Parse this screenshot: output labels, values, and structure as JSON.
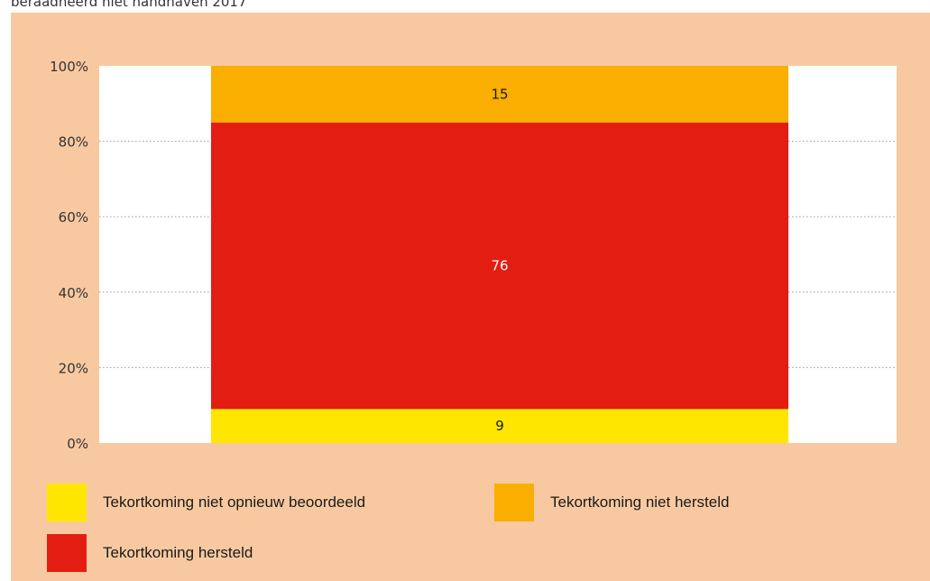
{
  "caption": "beraadheerd niet handhaven 2017",
  "colors": {
    "background": "#f8c9a0",
    "plot_bg": "#ffffff",
    "grid": "#9a9a9a",
    "yellow": "#ffe600",
    "red": "#e31d12",
    "orange": "#f9ae00"
  },
  "chart_data": {
    "type": "bar",
    "stacked": true,
    "title": "",
    "xlabel": "",
    "ylabel": "",
    "ylim": [
      0,
      100
    ],
    "y_ticks": [
      "0%",
      "20%",
      "40%",
      "60%",
      "80%",
      "100%"
    ],
    "y_tick_values": [
      0,
      20,
      40,
      60,
      80,
      100
    ],
    "grid": true,
    "categories": [
      ""
    ],
    "series": [
      {
        "name": "Tekortkoming niet opnieuw beoordeeld",
        "values": [
          9
        ],
        "label": "9",
        "color": "#ffe600",
        "label_color": "#1a1a1a"
      },
      {
        "name": "Tekortkoming hersteld",
        "values": [
          76
        ],
        "label": "76",
        "color": "#e31d12",
        "label_color": "#ffffff"
      },
      {
        "name": "Tekortkoming niet hersteld",
        "values": [
          15
        ],
        "label": "15",
        "color": "#f9ae00",
        "label_color": "#1a1a1a"
      }
    ],
    "legend": {
      "placement": "bottom",
      "items": [
        "Tekortkoming niet opnieuw beoordeeld",
        "Tekortkoming niet hersteld",
        "Tekortkoming hersteld"
      ]
    }
  }
}
